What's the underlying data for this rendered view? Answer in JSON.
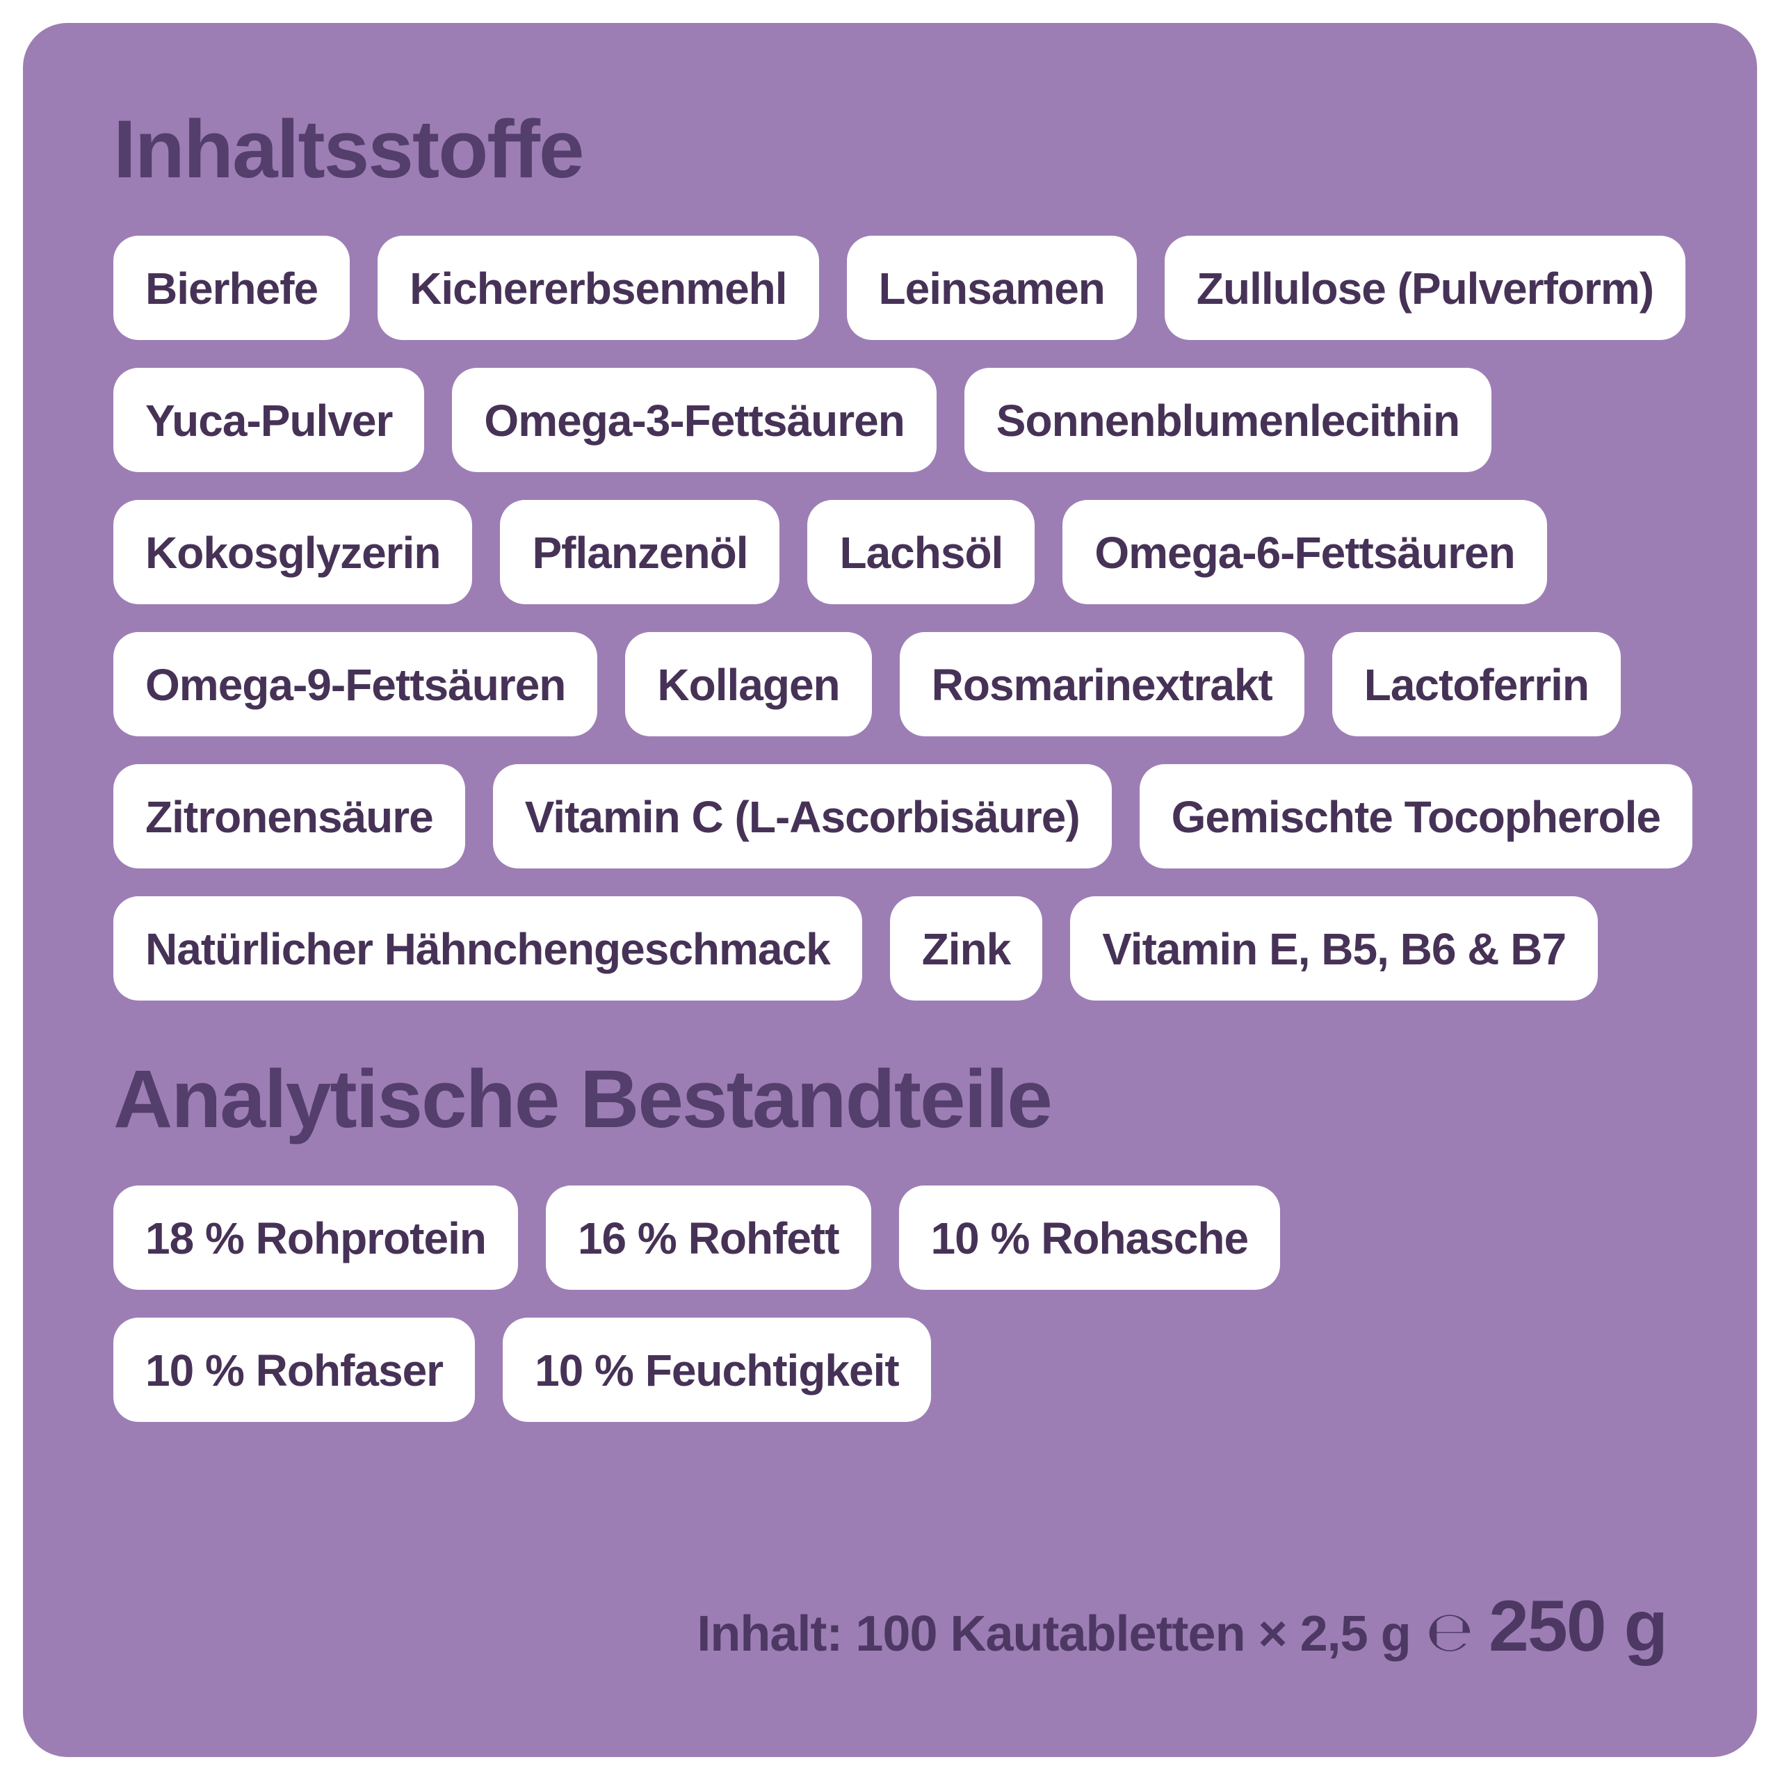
{
  "colors": {
    "page_background": "#ffffff",
    "panel_background": "#9c7eb5",
    "heading_text": "#543e6b",
    "tag_background": "#ffffff",
    "tag_text": "#473257"
  },
  "ingredients": {
    "title": "Inhaltsstoffe",
    "rows": [
      [
        "Bierhefe",
        "Kichererbsenmehl",
        "Leinsamen",
        "Zullulose (Pulverform)"
      ],
      [
        "Yuca-Pulver",
        "Omega-3-Fettsäuren",
        "Sonnenblumenlecithin"
      ],
      [
        "Kokosglyzerin",
        "Pflanzenöl",
        "Lachsöl",
        "Omega-6-Fettsäuren"
      ],
      [
        "Omega-9-Fettsäuren",
        "Kollagen",
        "Rosmarinextrakt",
        "Lactoferrin"
      ],
      [
        "Zitronensäure",
        "Vitamin C (L-Ascorbisäure)",
        "Gemischte Tocopherole"
      ],
      [
        "Natürlicher Hähnchengeschmack",
        "Zink",
        "Vitamin E, B5, B6 & B7"
      ]
    ]
  },
  "analytical": {
    "title": "Analytische Bestandteile",
    "rows": [
      [
        "18 % Rohprotein",
        "16 % Rohfett",
        "10 % Rohasche"
      ],
      [
        "10 % Rohfaser",
        "10 % Feuchtigkeit"
      ]
    ]
  },
  "footer": {
    "content_text": "Inhalt: 100 Kautabletten × 2,5 g",
    "estimated_sign": "℮",
    "net_weight": "250 g"
  }
}
